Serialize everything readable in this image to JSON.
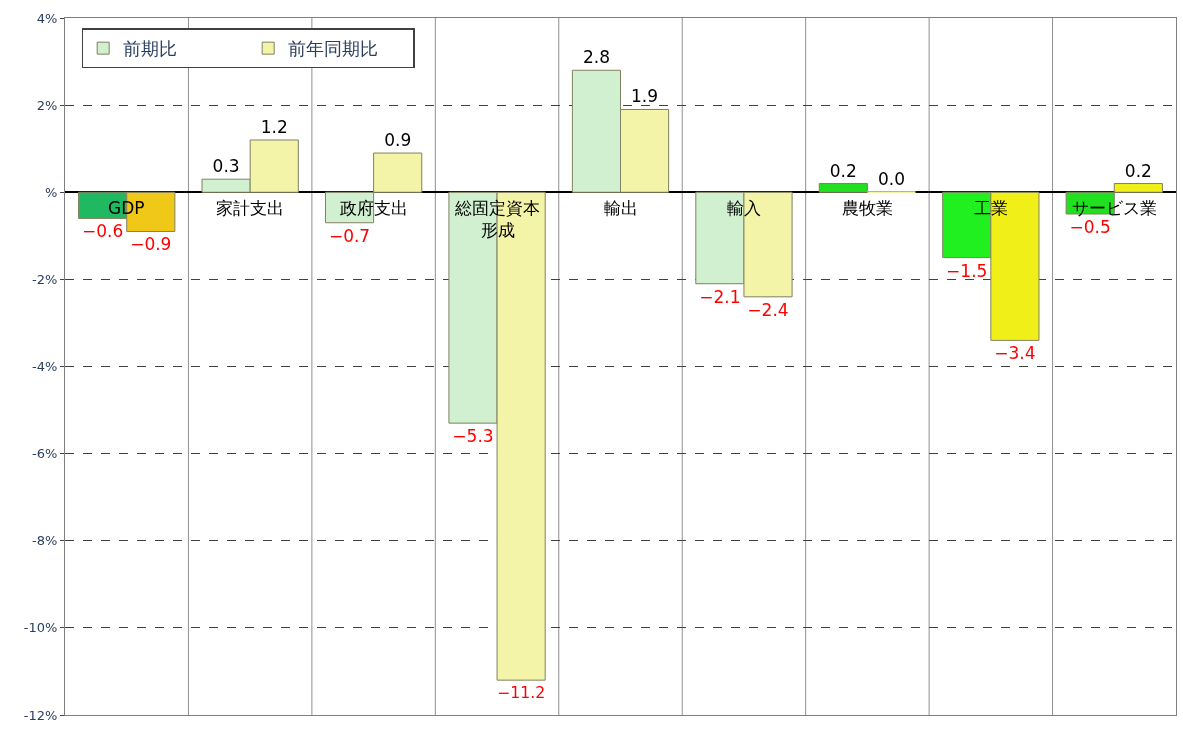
{
  "chart_data": {
    "type": "bar",
    "categories": [
      "GDP",
      "家計支出",
      "政府支出",
      "総固定資本形成",
      "輸出",
      "輸入",
      "農牧業",
      "工業",
      "サービス業"
    ],
    "series": [
      {
        "name": "前期比",
        "color": "#d0f0d0",
        "colors": [
          "#20b860",
          "#d0f0d0",
          "#d0f0d0",
          "#d0f0d0",
          "#d0f0d0",
          "#d0f0d0",
          "#20e020",
          "#20f020",
          "#20e020"
        ],
        "values": [
          -0.6,
          0.3,
          -0.7,
          -5.3,
          2.8,
          -2.1,
          0.2,
          -1.5,
          -0.5
        ],
        "value_labels": [
          "−0.6",
          "0.3",
          "−0.7",
          "−5.3",
          "2.8",
          "−2.1",
          "0.2",
          "−1.5",
          "−0.5"
        ]
      },
      {
        "name": "前年同期比",
        "color": "#f4f4a8",
        "colors": [
          "#f0c818",
          "#f4f4a8",
          "#f4f4a8",
          "#f4f4a8",
          "#f4f4a8",
          "#f4f4a8",
          "#f4f4a8",
          "#f0f018",
          "#f0f018"
        ],
        "values": [
          -0.9,
          1.2,
          0.9,
          -11.2,
          1.9,
          -2.4,
          0.0,
          -3.4,
          0.2
        ],
        "value_labels": [
          "−0.9",
          "1.2",
          "0.9",
          "−11.2",
          "1.9",
          "−2.4",
          "0.0",
          "−3.4",
          "0.2"
        ]
      }
    ],
    "ylim": [
      -12,
      4
    ],
    "yticks": [
      {
        "value": -12,
        "label": "-12%"
      },
      {
        "value": -10,
        "label": "-10%"
      },
      {
        "value": -8,
        "label": "-8%"
      },
      {
        "value": -6,
        "label": "-6%"
      },
      {
        "value": -4,
        "label": "-4%"
      },
      {
        "value": -2,
        "label": "-2%"
      },
      {
        "value": 0,
        "label": "%"
      },
      {
        "value": 2,
        "label": "2%"
      },
      {
        "value": 4,
        "label": "4%"
      }
    ],
    "grid": true,
    "legend": "top left"
  }
}
